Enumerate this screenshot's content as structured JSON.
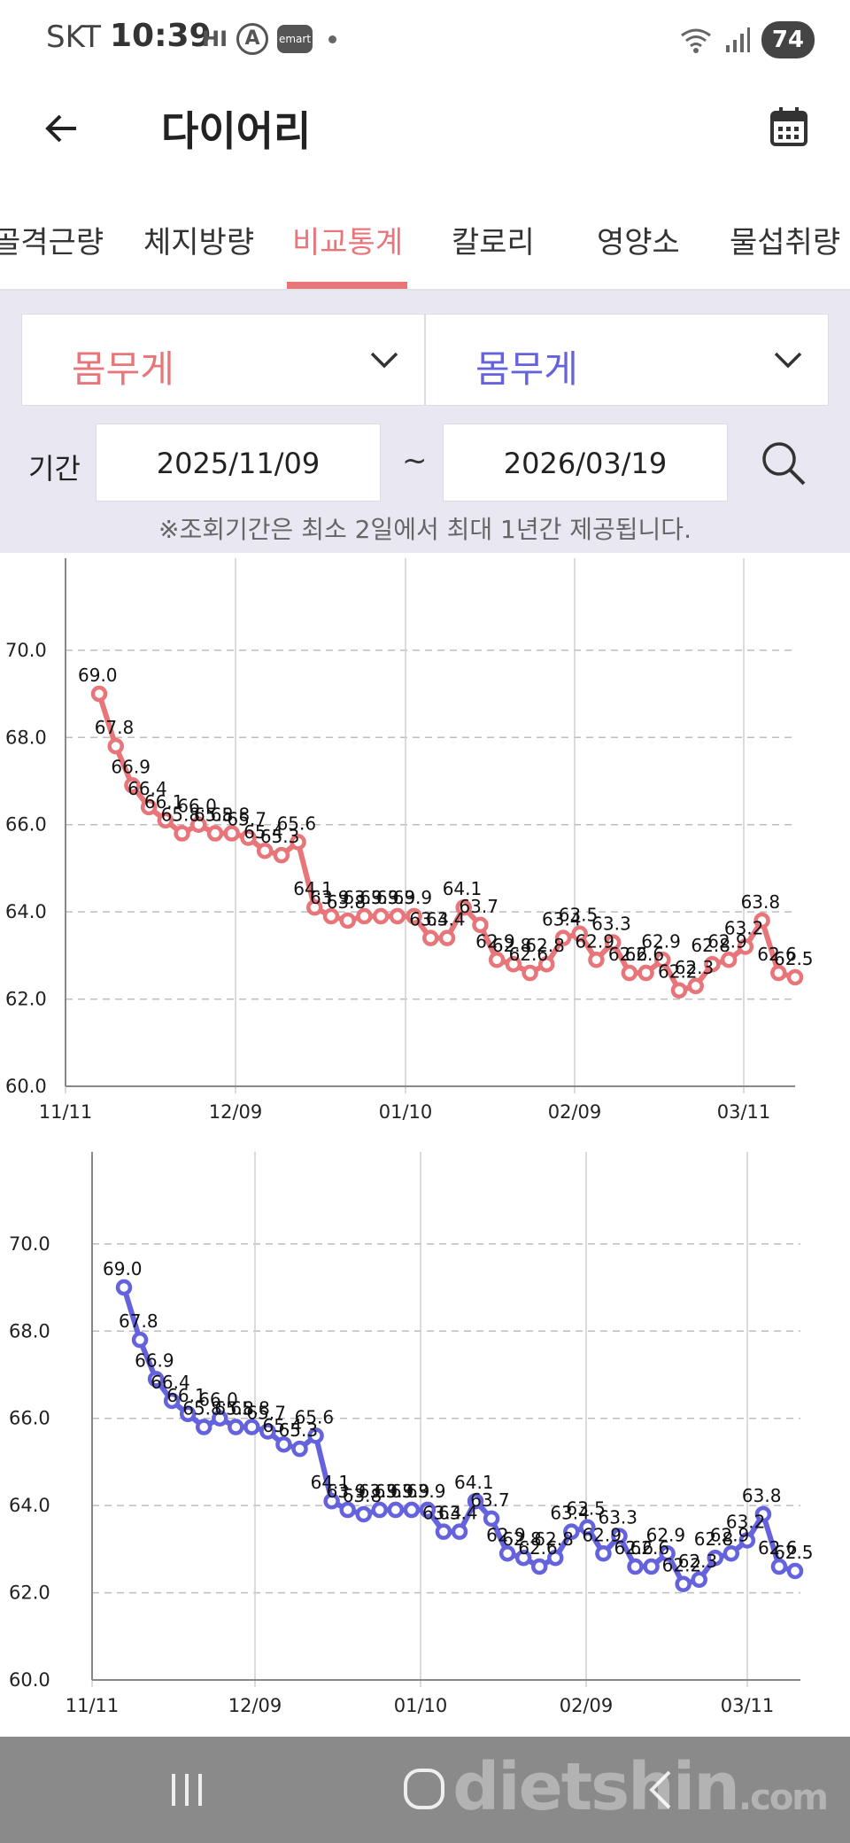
{
  "status_bar": {
    "carrier": "SKT",
    "time": "10:39",
    "notif_hi": "HI",
    "notif_a": "A",
    "notif_emart": "emart",
    "battery": "74"
  },
  "header": {
    "title": "다이어리"
  },
  "tabs": [
    {
      "label": "골격근량",
      "active": false
    },
    {
      "label": "체지방량",
      "active": false
    },
    {
      "label": "비교통계",
      "active": true
    },
    {
      "label": "칼로리",
      "active": false
    },
    {
      "label": "영양소",
      "active": false
    },
    {
      "label": "물섭취량",
      "active": false
    }
  ],
  "filters": {
    "left_select": "몸무게",
    "right_select": "몸무게",
    "period_label": "기간",
    "start_date": "2025/11/09",
    "separator": "~",
    "end_date": "2026/03/19",
    "notice": "※조회기간은 최소 2일에서 최대 1년간 제공됩니다."
  },
  "colors": {
    "accent": "#e8757a",
    "left_series": "#e8757a",
    "right_series": "#6463dd",
    "filter_bg": "#e9e8f2"
  },
  "watermark": {
    "brand": "dietshin",
    "suffix": ".com"
  },
  "chart_data": [
    {
      "type": "line",
      "x_ticks": [
        "11/11",
        "12/09",
        "01/10",
        "02/09",
        "03/11"
      ],
      "y_ticks": [
        "60.0",
        "62.0",
        "64.0",
        "66.0",
        "68.0",
        "70.0"
      ],
      "ylim": [
        60,
        71.5
      ],
      "grid": true,
      "color": "#e8757a",
      "series": [
        {
          "values": [
            69.0,
            67.8,
            66.9,
            66.4,
            66.1,
            65.8,
            66.0,
            65.8,
            65.8,
            65.7,
            65.4,
            65.3,
            65.6,
            64.1,
            63.9,
            63.8,
            63.9,
            63.9,
            63.9,
            63.9,
            63.4,
            63.4,
            64.1,
            63.7,
            62.9,
            62.8,
            62.6,
            62.8,
            63.4,
            63.5,
            62.9,
            63.3,
            62.6,
            62.6,
            62.9,
            62.2,
            62.3,
            62.8,
            62.9,
            63.2,
            63.8,
            62.6,
            62.5
          ]
        }
      ]
    },
    {
      "type": "line",
      "x_ticks": [
        "11/11",
        "12/09",
        "01/10",
        "02/09",
        "03/11"
      ],
      "y_ticks": [
        "60.0",
        "62.0",
        "64.0",
        "66.0",
        "68.0",
        "70.0"
      ],
      "ylim": [
        60,
        71.5
      ],
      "grid": true,
      "color": "#6463dd",
      "series": [
        {
          "values": [
            69.0,
            67.8,
            66.9,
            66.4,
            66.1,
            65.8,
            66.0,
            65.8,
            65.8,
            65.7,
            65.4,
            65.3,
            65.6,
            64.1,
            63.9,
            63.8,
            63.9,
            63.9,
            63.9,
            63.9,
            63.4,
            63.4,
            64.1,
            63.7,
            62.9,
            62.8,
            62.6,
            62.8,
            63.4,
            63.5,
            62.9,
            63.3,
            62.6,
            62.6,
            62.9,
            62.2,
            62.3,
            62.8,
            62.9,
            63.2,
            63.8,
            62.6,
            62.5
          ]
        }
      ]
    }
  ]
}
